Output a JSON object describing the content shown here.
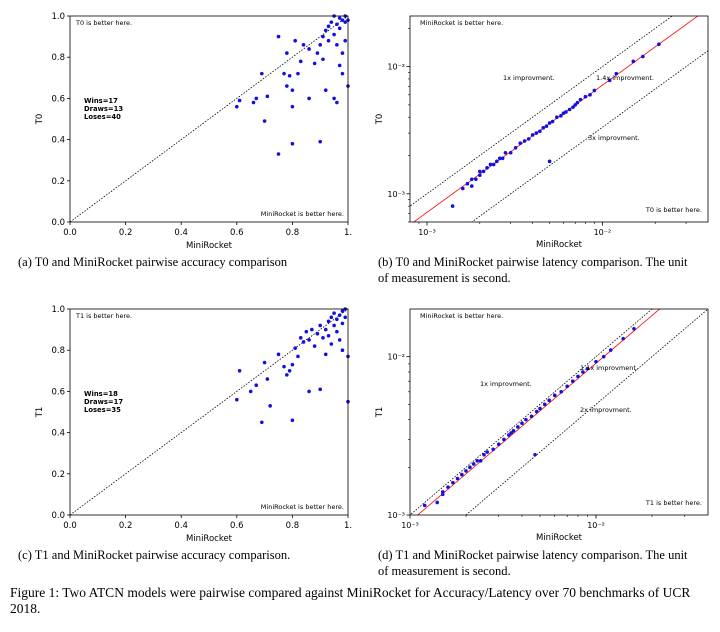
{
  "figure_caption": "Figure 1: Two ATCN models were pairwise compared against MiniRocket for Accuracy/Latency over 70 benchmarks of UCR 2018.",
  "chart_data": [
    {
      "id": "a",
      "type": "scatter",
      "caption": "(a) T0 and MiniRocket pairwise accuracy comparison",
      "xlabel": "MiniRocket",
      "ylabel": "T0",
      "xlim": [
        0,
        1
      ],
      "ylim": [
        0,
        1
      ],
      "x_ticks": [
        "0.0",
        "0.2",
        "0.4",
        "0.6",
        "0.8",
        "1."
      ],
      "y_ticks": [
        "0.0",
        "0.2",
        "0.4",
        "0.6",
        "0.8",
        "1.0"
      ],
      "annotations": {
        "top_left": "T0 is better here.",
        "bottom_right": "MiniRocket is better here.",
        "stats": [
          "Wins=17",
          "Draws=13",
          "Loses=40"
        ]
      },
      "points": [
        [
          0.6,
          0.56
        ],
        [
          0.61,
          0.59
        ],
        [
          0.66,
          0.58
        ],
        [
          0.67,
          0.6
        ],
        [
          0.69,
          0.72
        ],
        [
          0.7,
          0.49
        ],
        [
          0.71,
          0.61
        ],
        [
          0.75,
          0.33
        ],
        [
          0.75,
          0.9
        ],
        [
          0.77,
          0.72
        ],
        [
          0.78,
          0.82
        ],
        [
          0.78,
          0.66
        ],
        [
          0.79,
          0.71
        ],
        [
          0.8,
          0.38
        ],
        [
          0.8,
          0.64
        ],
        [
          0.8,
          0.56
        ],
        [
          0.81,
          0.88
        ],
        [
          0.82,
          0.72
        ],
        [
          0.83,
          0.78
        ],
        [
          0.84,
          0.86
        ],
        [
          0.86,
          0.84
        ],
        [
          0.88,
          0.77
        ],
        [
          0.89,
          0.82
        ],
        [
          0.9,
          0.86
        ],
        [
          0.9,
          0.39
        ],
        [
          0.91,
          0.9
        ],
        [
          0.91,
          0.79
        ],
        [
          0.92,
          0.64
        ],
        [
          0.92,
          0.93
        ],
        [
          0.93,
          0.95
        ],
        [
          0.93,
          0.88
        ],
        [
          0.94,
          0.97
        ],
        [
          0.95,
          0.91
        ],
        [
          0.95,
          1.0
        ],
        [
          0.96,
          0.96
        ],
        [
          0.96,
          0.86
        ],
        [
          0.97,
          0.99
        ],
        [
          0.97,
          0.94
        ],
        [
          0.98,
          0.98
        ],
        [
          0.98,
          0.82
        ],
        [
          0.98,
          0.72
        ],
        [
          0.99,
          0.88
        ],
        [
          0.99,
          0.97
        ],
        [
          0.99,
          1.0
        ],
        [
          1.0,
          0.98
        ],
        [
          1.0,
          0.66
        ],
        [
          0.97,
          0.76
        ],
        [
          0.95,
          0.6
        ],
        [
          0.86,
          0.6
        ],
        [
          0.96,
          0.58
        ]
      ]
    },
    {
      "id": "b",
      "type": "scatter",
      "caption": "(b) T0 and MiniRocket pairwise latency comparison. The unit of measurement is second.",
      "xlabel": "MiniRocket",
      "ylabel": "T0",
      "xscale": "log",
      "yscale": "log",
      "xlim": [
        0.0008,
        0.04
      ],
      "ylim": [
        0.0006,
        0.025
      ],
      "x_ticks": [
        {
          "value": 0.001,
          "label": "10⁻³"
        },
        {
          "value": 0.01,
          "label": "10⁻²"
        }
      ],
      "y_ticks": [
        {
          "value": 0.001,
          "label": "10⁻³"
        },
        {
          "value": 0.01,
          "label": "10⁻²"
        }
      ],
      "reference_lines": [
        {
          "ratio": 1.0,
          "label": "1x improvment.",
          "color": "#000000"
        },
        {
          "ratio": 1.4,
          "label": "1.4x improvment.",
          "color": "#ff0000"
        },
        {
          "ratio": 3.0,
          "label": "3x improvment.",
          "color": "#000000"
        }
      ],
      "annotations": {
        "top_left": "MiniRocket is better here.",
        "bottom_right": "T0 is better here."
      },
      "points": [
        [
          0.0016,
          0.0011
        ],
        [
          0.0017,
          0.0012
        ],
        [
          0.0018,
          0.0013
        ],
        [
          0.0019,
          0.0013
        ],
        [
          0.002,
          0.0014
        ],
        [
          0.002,
          0.0015
        ],
        [
          0.0021,
          0.0015
        ],
        [
          0.0022,
          0.0016
        ],
        [
          0.0023,
          0.0017
        ],
        [
          0.0024,
          0.0017
        ],
        [
          0.0025,
          0.0018
        ],
        [
          0.0026,
          0.0019
        ],
        [
          0.0027,
          0.0019
        ],
        [
          0.003,
          0.0021
        ],
        [
          0.0032,
          0.0023
        ],
        [
          0.0034,
          0.0025
        ],
        [
          0.0036,
          0.0026
        ],
        [
          0.0038,
          0.0027
        ],
        [
          0.004,
          0.0029
        ],
        [
          0.0042,
          0.003
        ],
        [
          0.0044,
          0.0031
        ],
        [
          0.0046,
          0.0033
        ],
        [
          0.0048,
          0.0034
        ],
        [
          0.005,
          0.0036
        ],
        [
          0.0052,
          0.0037
        ],
        [
          0.0055,
          0.004
        ],
        [
          0.0058,
          0.0041
        ],
        [
          0.006,
          0.0043
        ],
        [
          0.0062,
          0.0044
        ],
        [
          0.0065,
          0.0046
        ],
        [
          0.0068,
          0.0048
        ],
        [
          0.007,
          0.005
        ],
        [
          0.0072,
          0.0052
        ],
        [
          0.0075,
          0.0055
        ],
        [
          0.008,
          0.0058
        ],
        [
          0.0085,
          0.006
        ],
        [
          0.009,
          0.0065
        ],
        [
          0.011,
          0.0078
        ],
        [
          0.012,
          0.0088
        ],
        [
          0.015,
          0.011
        ],
        [
          0.017,
          0.012
        ],
        [
          0.021,
          0.015
        ],
        [
          0.005,
          0.0018
        ],
        [
          0.0014,
          0.0008
        ],
        [
          0.0018,
          0.00115
        ],
        [
          0.0028,
          0.0021
        ]
      ]
    },
    {
      "id": "c",
      "type": "scatter",
      "caption": "(c) T1 and MiniRocket pairwise accuracy comparison.",
      "xlabel": "MiniRocket",
      "ylabel": "T1",
      "xlim": [
        0,
        1
      ],
      "ylim": [
        0,
        1
      ],
      "x_ticks": [
        "0.0",
        "0.2",
        "0.4",
        "0.6",
        "0.8",
        "1."
      ],
      "y_ticks": [
        "0.0",
        "0.2",
        "0.4",
        "0.6",
        "0.8",
        "1.0"
      ],
      "annotations": {
        "top_left": "T1 is better here.",
        "bottom_right": "MiniRocket is better here.",
        "stats": [
          "Wins=18",
          "Draws=17",
          "Loses=35"
        ]
      },
      "points": [
        [
          0.6,
          0.56
        ],
        [
          0.61,
          0.7
        ],
        [
          0.65,
          0.6
        ],
        [
          0.67,
          0.63
        ],
        [
          0.69,
          0.45
        ],
        [
          0.7,
          0.74
        ],
        [
          0.71,
          0.66
        ],
        [
          0.72,
          0.53
        ],
        [
          0.75,
          0.78
        ],
        [
          0.77,
          0.72
        ],
        [
          0.78,
          0.68
        ],
        [
          0.79,
          0.7
        ],
        [
          0.8,
          0.46
        ],
        [
          0.8,
          0.73
        ],
        [
          0.81,
          0.81
        ],
        [
          0.82,
          0.77
        ],
        [
          0.83,
          0.86
        ],
        [
          0.84,
          0.84
        ],
        [
          0.85,
          0.89
        ],
        [
          0.86,
          0.85
        ],
        [
          0.87,
          0.9
        ],
        [
          0.88,
          0.82
        ],
        [
          0.89,
          0.88
        ],
        [
          0.9,
          0.61
        ],
        [
          0.9,
          0.92
        ],
        [
          0.91,
          0.86
        ],
        [
          0.92,
          0.9
        ],
        [
          0.93,
          0.94
        ],
        [
          0.93,
          0.87
        ],
        [
          0.94,
          0.96
        ],
        [
          0.95,
          0.92
        ],
        [
          0.95,
          0.98
        ],
        [
          0.96,
          0.95
        ],
        [
          0.96,
          0.89
        ],
        [
          0.97,
          0.97
        ],
        [
          0.97,
          0.85
        ],
        [
          0.98,
          0.99
        ],
        [
          0.98,
          0.93
        ],
        [
          0.99,
          0.96
        ],
        [
          0.99,
          1.0
        ],
        [
          1.0,
          0.55
        ],
        [
          1.0,
          0.77
        ],
        [
          0.94,
          0.83
        ],
        [
          0.92,
          0.78
        ],
        [
          0.86,
          0.6
        ],
        [
          0.98,
          0.8
        ]
      ]
    },
    {
      "id": "d",
      "type": "scatter",
      "caption": "(d) T1 and MiniRocket pairwise latency comparison. The unit of measurement is second.",
      "xlabel": "MiniRocket",
      "ylabel": "T1",
      "xscale": "log",
      "yscale": "log",
      "xlim": [
        0.001,
        0.04
      ],
      "ylim": [
        0.001,
        0.02
      ],
      "x_ticks": [
        {
          "value": 0.001,
          "label": "10⁻³"
        },
        {
          "value": 0.01,
          "label": "10⁻²"
        }
      ],
      "y_ticks": [
        {
          "value": 0.001,
          "label": "10⁻³"
        },
        {
          "value": 0.01,
          "label": "10⁻²"
        }
      ],
      "reference_lines": [
        {
          "ratio": 1.0,
          "label": "1x improvment.",
          "color": "#000000"
        },
        {
          "ratio": 1.1,
          "label": "1.1x improvment.",
          "color": "#ff0000"
        },
        {
          "ratio": 2.0,
          "label": "2x improvment.",
          "color": "#000000"
        }
      ],
      "annotations": {
        "top_left": "MiniRocket is better here.",
        "bottom_right": "T1 is better here."
      },
      "points": [
        [
          0.0012,
          0.00115
        ],
        [
          0.0014,
          0.0012
        ],
        [
          0.0015,
          0.0014
        ],
        [
          0.0016,
          0.0015
        ],
        [
          0.0017,
          0.0016
        ],
        [
          0.0018,
          0.0017
        ],
        [
          0.0019,
          0.0018
        ],
        [
          0.002,
          0.0019
        ],
        [
          0.0021,
          0.002
        ],
        [
          0.0022,
          0.0021
        ],
        [
          0.0024,
          0.0022
        ],
        [
          0.0025,
          0.0024
        ],
        [
          0.0026,
          0.0025
        ],
        [
          0.0028,
          0.0026
        ],
        [
          0.003,
          0.0028
        ],
        [
          0.0032,
          0.003
        ],
        [
          0.0034,
          0.0032
        ],
        [
          0.0036,
          0.0034
        ],
        [
          0.0038,
          0.0036
        ],
        [
          0.004,
          0.0038
        ],
        [
          0.0042,
          0.004
        ],
        [
          0.0045,
          0.0042
        ],
        [
          0.0048,
          0.0045
        ],
        [
          0.005,
          0.0047
        ],
        [
          0.0053,
          0.005
        ],
        [
          0.0056,
          0.0053
        ],
        [
          0.006,
          0.0057
        ],
        [
          0.0065,
          0.006
        ],
        [
          0.007,
          0.0065
        ],
        [
          0.0075,
          0.007
        ],
        [
          0.008,
          0.0075
        ],
        [
          0.0085,
          0.008
        ],
        [
          0.009,
          0.0084
        ],
        [
          0.01,
          0.0093
        ],
        [
          0.011,
          0.01
        ],
        [
          0.012,
          0.011
        ],
        [
          0.014,
          0.013
        ],
        [
          0.016,
          0.015
        ],
        [
          0.0047,
          0.0024
        ],
        [
          0.0015,
          0.00135
        ],
        [
          0.0023,
          0.0022
        ],
        [
          0.0035,
          0.0033
        ]
      ]
    }
  ]
}
